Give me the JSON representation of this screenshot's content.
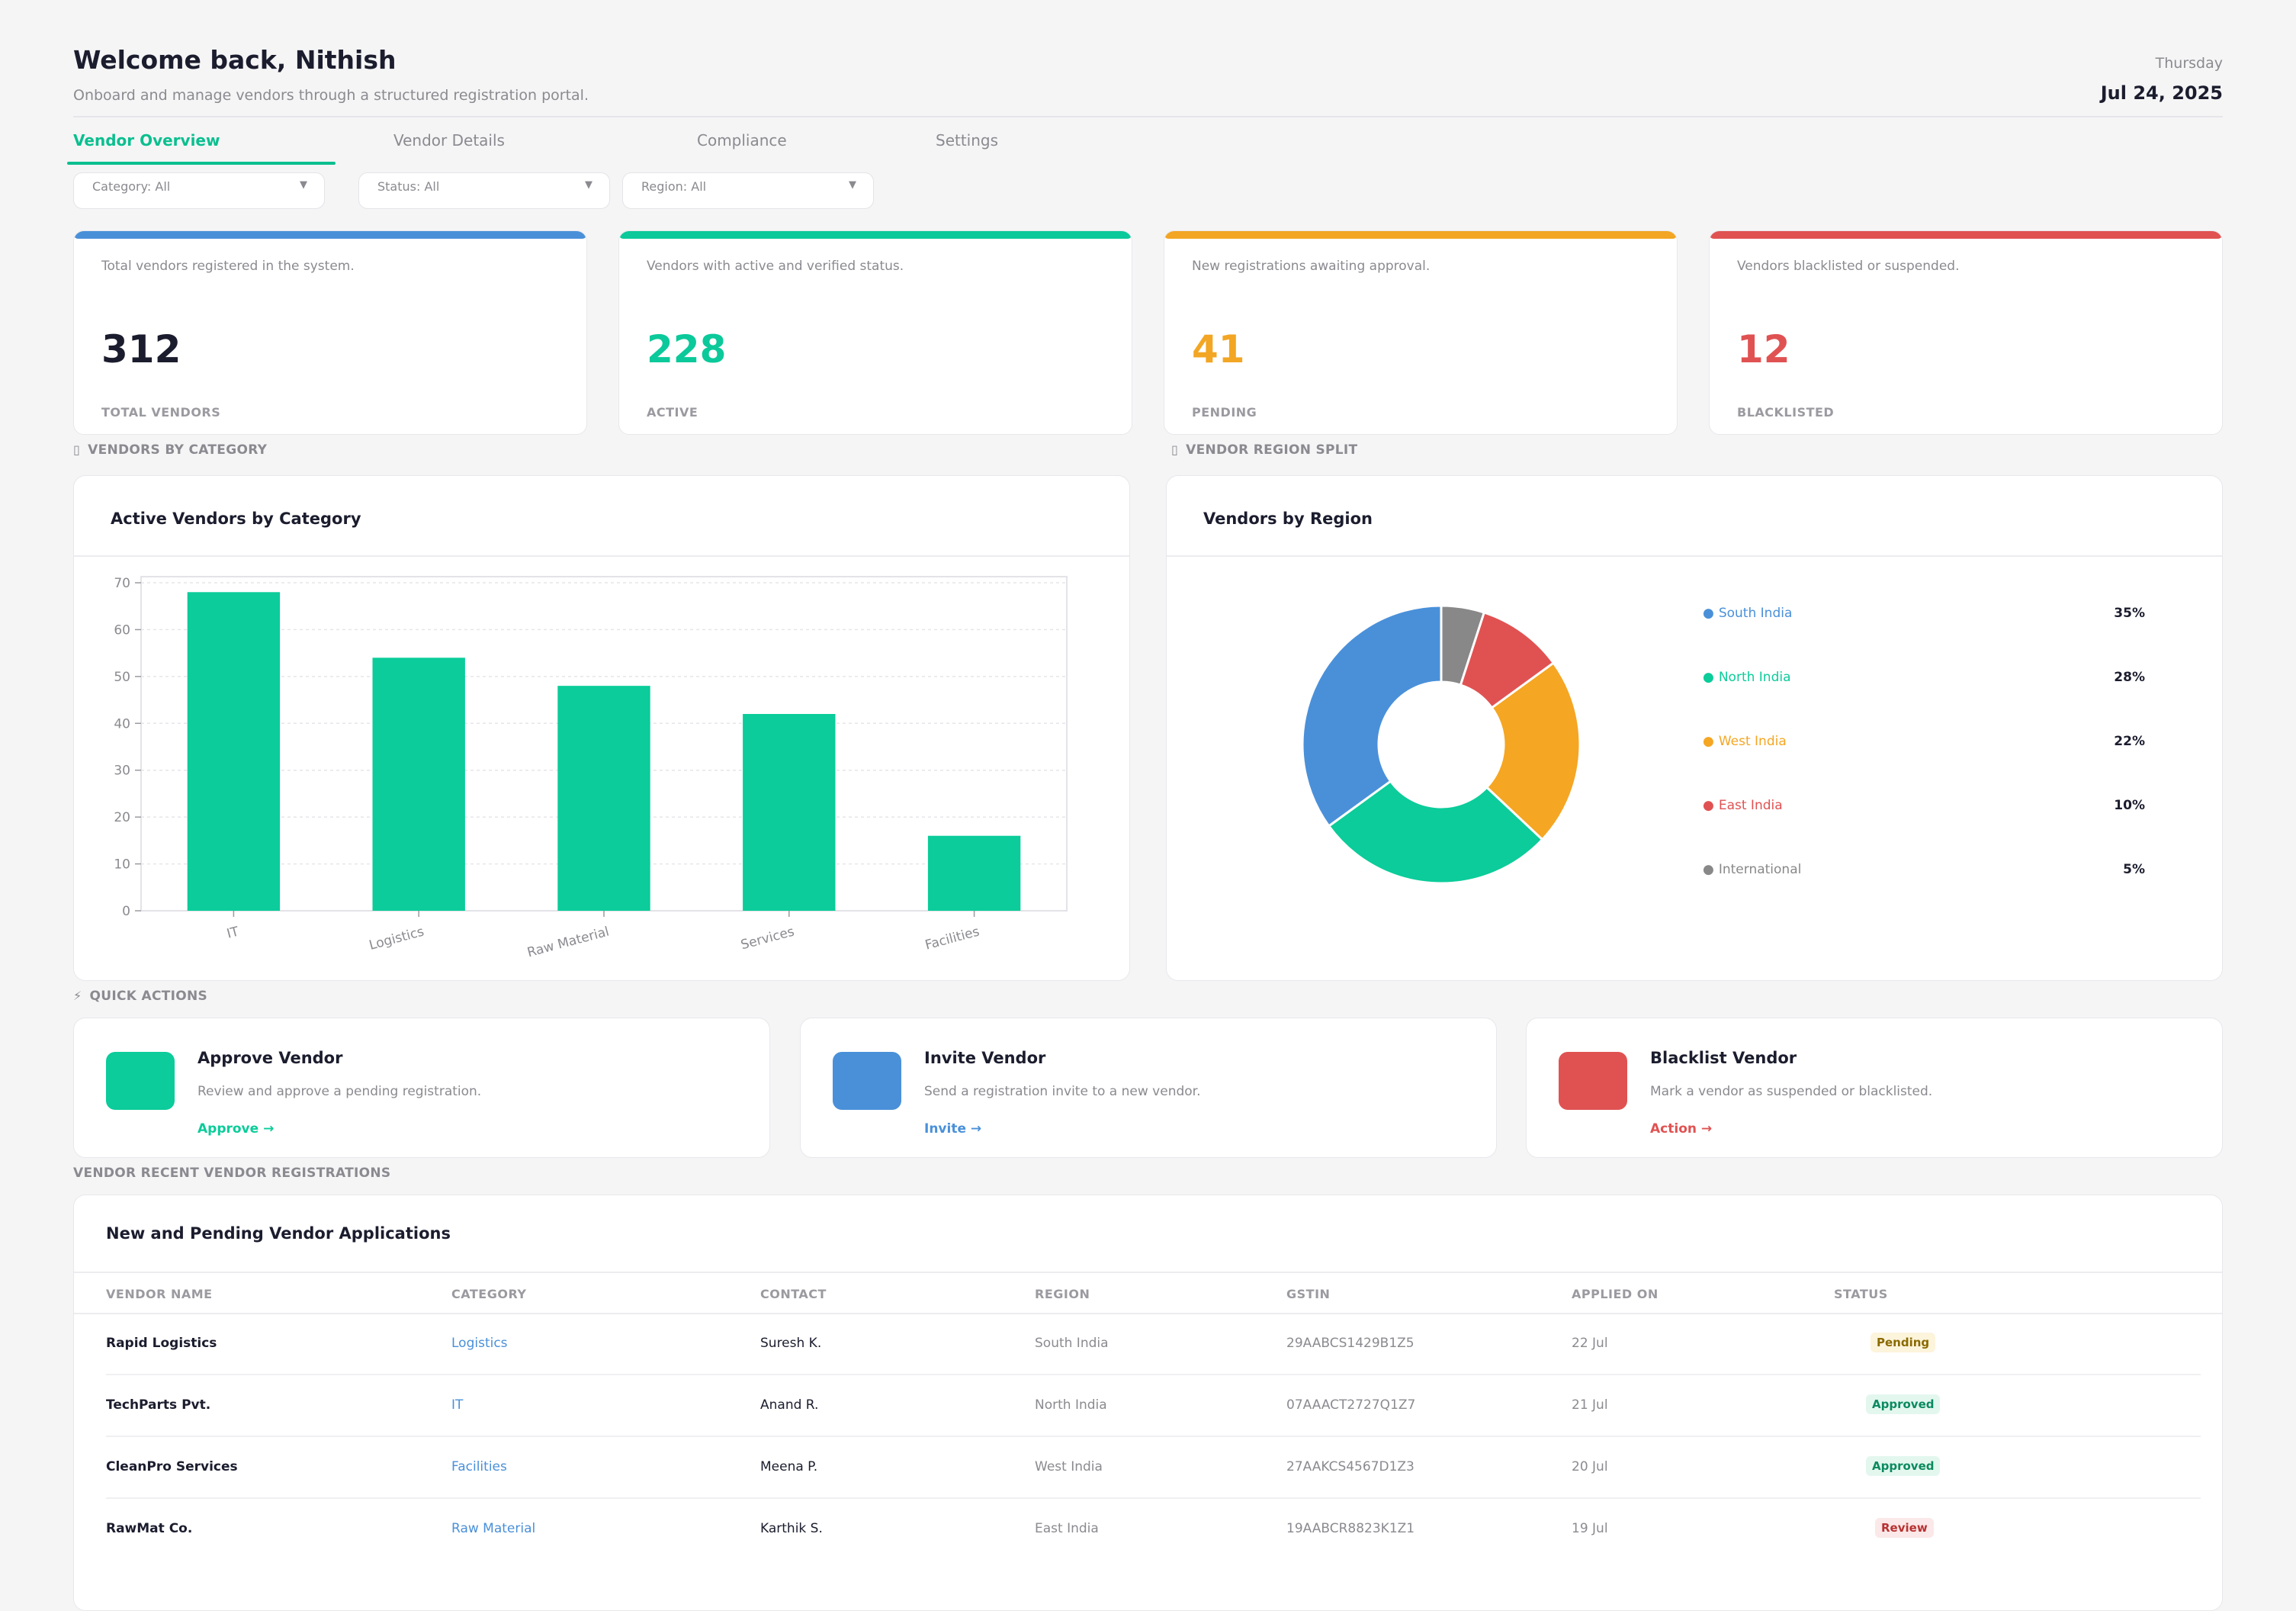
{
  "header": {
    "welcome": "Welcome back, Nithish",
    "subtitle": "Onboard and manage vendors through a structured registration portal.",
    "day": "Thursday",
    "date": "Jul 24, 2025"
  },
  "tabs": [
    "Vendor Overview",
    "Vendor Details",
    "Compliance",
    "Settings"
  ],
  "filters": [
    "Category: All",
    "Status: All",
    "Region: All"
  ],
  "stats": [
    {
      "desc": "Total vendors registered in the system.",
      "value": "312",
      "label": "TOTAL VENDORS",
      "color": "#4a90d9",
      "value_color": "#1b1d2e"
    },
    {
      "desc": "Vendors with active and verified status.",
      "value": "228",
      "label": "ACTIVE",
      "color": "#0bc99a",
      "value_color": "#0bc99a"
    },
    {
      "desc": "New registrations awaiting approval.",
      "value": "41",
      "label": "PENDING",
      "color": "#f2a623",
      "value_color": "#f2a623"
    },
    {
      "desc": "Vendors blacklisted or suspended.",
      "value": "12",
      "label": "BLACKLISTED",
      "color": "#e05252",
      "value_color": "#e05252"
    }
  ],
  "sections": {
    "category": "VENDORS BY CATEGORY",
    "region": "VENDOR REGION SPLIT",
    "quick": "QUICK ACTIONS",
    "recent": "VENDOR  RECENT VENDOR REGISTRATIONS"
  },
  "bar_panel_title": "Active Vendors by Category",
  "pie_panel_title": "Vendors by Region",
  "chart_data": [
    {
      "type": "bar",
      "title": "Active Vendors by Category",
      "categories": [
        "IT",
        "Logistics",
        "Raw Material",
        "Services",
        "Facilities"
      ],
      "values": [
        68,
        54,
        48,
        42,
        16
      ],
      "ylim": [
        0,
        70
      ],
      "yticks": [
        0,
        10,
        20,
        30,
        40,
        50,
        60,
        70
      ],
      "grid": true,
      "color": "#0bcc9a"
    },
    {
      "type": "pie",
      "title": "Vendors by Region",
      "donut": true,
      "slices": [
        {
          "label": "South India",
          "pct": "35%",
          "value": 35,
          "color": "#4a90d9"
        },
        {
          "label": "North India",
          "pct": "28%",
          "value": 28,
          "color": "#0bcc9a"
        },
        {
          "label": "West India",
          "pct": "22%",
          "value": 22,
          "color": "#f5a623"
        },
        {
          "label": "East India",
          "pct": "10%",
          "value": 10,
          "color": "#e05252"
        },
        {
          "label": "International",
          "pct": "5%",
          "value": 5,
          "color": "#888888"
        }
      ],
      "legend": "right"
    }
  ],
  "quick_actions": [
    {
      "title": "Approve Vendor",
      "desc": "Review and approve a pending registration.",
      "link": "Approve →",
      "color": "#0bcc9a"
    },
    {
      "title": "Invite Vendor",
      "desc": "Send a registration invite to a new vendor.",
      "link": "Invite →",
      "color": "#4a90d9"
    },
    {
      "title": "Blacklist Vendor",
      "desc": "Mark a vendor as suspended or blacklisted.",
      "link": "Action →",
      "color": "#e05252"
    }
  ],
  "table": {
    "title": "New and Pending Vendor Applications",
    "columns": [
      "VENDOR NAME",
      "CATEGORY",
      "CONTACT",
      "REGION",
      "GSTIN",
      "APPLIED ON",
      "STATUS"
    ],
    "rows": [
      {
        "name": "Rapid Logistics",
        "category": "Logistics",
        "contact": "Suresh K.",
        "region": "South India",
        "gstin": "29AABCS1429B1Z5",
        "applied": "22 Jul",
        "status": "Pending",
        "status_fg": "#8a6a00",
        "status_bg": "#fdf4dc"
      },
      {
        "name": "TechParts Pvt.",
        "category": "IT",
        "contact": "Anand R.",
        "region": "North India",
        "gstin": "07AAACT2727Q1Z7",
        "applied": "21 Jul",
        "status": "Approved",
        "status_fg": "#0a8a5e",
        "status_bg": "#e3f7ef"
      },
      {
        "name": "CleanPro Services",
        "category": "Facilities",
        "contact": "Meena P.",
        "region": "West India",
        "gstin": "27AAKCS4567D1Z3",
        "applied": "20 Jul",
        "status": "Approved",
        "status_fg": "#0a8a5e",
        "status_bg": "#e3f7ef"
      },
      {
        "name": "RawMat Co.",
        "category": "Raw Material",
        "contact": "Karthik S.",
        "region": "East India",
        "gstin": "19AABCR8823K1Z1",
        "applied": "19 Jul",
        "status": "Review",
        "status_fg": "#b83232",
        "status_bg": "#fbe8e8"
      }
    ]
  }
}
